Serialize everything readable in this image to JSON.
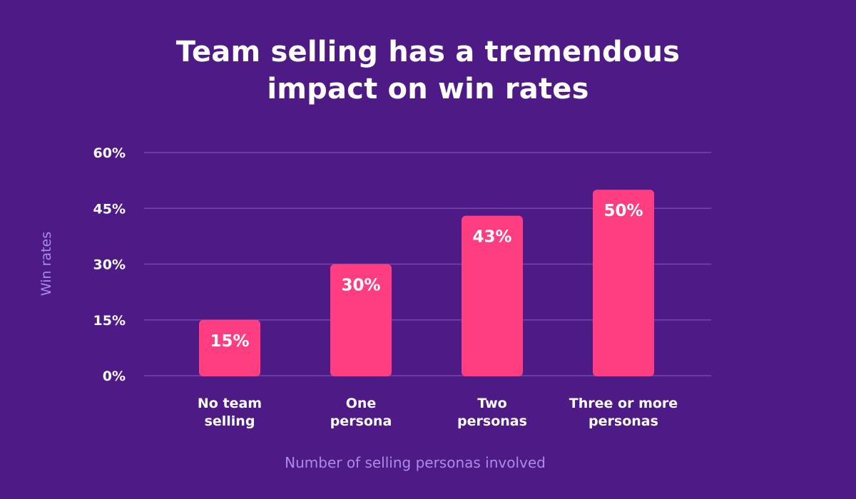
{
  "colors": {
    "background": "#4e1a86",
    "bar": "#ff3d81",
    "gridline": "#7446ab",
    "axis_text": "#ffffff",
    "axis_title": "#a98ce8"
  },
  "chart_data": {
    "type": "bar",
    "title": [
      "Team selling has a tremendous",
      "impact on win rates"
    ],
    "xlabel": "Number of selling personas involved",
    "ylabel": "Win rates",
    "ylim": [
      0,
      60
    ],
    "yticks": [
      0,
      15,
      30,
      45,
      60
    ],
    "ytick_labels": [
      "0%",
      "15%",
      "30%",
      "45%",
      "60%"
    ],
    "categories": [
      [
        "No team",
        "selling"
      ],
      [
        "One",
        "persona"
      ],
      [
        "Two",
        "personas"
      ],
      [
        "Three or more",
        "personas"
      ]
    ],
    "values": [
      15,
      30,
      43,
      50
    ],
    "data_labels": [
      "15%",
      "30%",
      "43%",
      "50%"
    ],
    "grid": true,
    "legend": false
  }
}
